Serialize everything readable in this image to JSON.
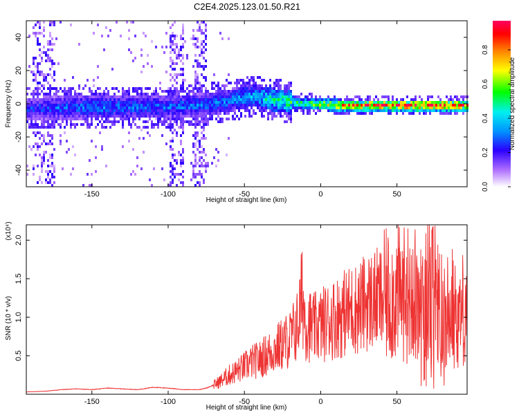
{
  "figure": {
    "title": "C2E4.2025.123.01.50.R21"
  },
  "chart_data": [
    {
      "type": "heatmap",
      "xlabel": "Height of straight line (km)",
      "ylabel": "Frequency (Hz)",
      "xlim": [
        -193,
        96
      ],
      "ylim": [
        -50,
        50
      ],
      "xticks": [
        -150,
        -100,
        -50,
        0,
        50
      ],
      "yticks": [
        -40,
        -20,
        0,
        20,
        40
      ],
      "grid": false,
      "colorbar": {
        "label": "Normalized spectral amplitude",
        "range": [
          0,
          0.97
        ],
        "ticks": [
          0.0,
          0.2,
          0.4,
          0.6,
          0.8
        ]
      },
      "ridge": [
        {
          "x": -190,
          "f": -3,
          "amp": 0.25
        },
        {
          "x": -150,
          "f": -2,
          "amp": 0.32
        },
        {
          "x": -110,
          "f": -2,
          "amp": 0.3
        },
        {
          "x": -80,
          "f": -1,
          "amp": 0.3
        },
        {
          "x": -60,
          "f": 2,
          "amp": 0.33
        },
        {
          "x": -45,
          "f": 5,
          "amp": 0.38
        },
        {
          "x": -30,
          "f": 2,
          "amp": 0.5
        },
        {
          "x": -10,
          "f": 0,
          "amp": 0.55
        },
        {
          "x": 10,
          "f": -1,
          "amp": 0.75
        },
        {
          "x": 40,
          "f": -1,
          "amp": 0.85
        },
        {
          "x": 70,
          "f": -1,
          "amp": 0.9
        },
        {
          "x": 95,
          "f": -1,
          "amp": 0.8
        }
      ]
    },
    {
      "type": "line",
      "xlabel": "Height of straight line (km)",
      "ylabel": "SNR (10 * v/v)",
      "scale_label": "(x10⁴)",
      "xlim": [
        -193,
        96
      ],
      "ylim": [
        0,
        2.2
      ],
      "xticks": [
        -150,
        -100,
        -50,
        0,
        50
      ],
      "yticks": [
        0.5,
        1.0,
        1.5,
        2.0
      ],
      "ytick_labels": [
        "0.5",
        "1.0",
        "1.5",
        "2.0"
      ],
      "grid": false,
      "series": [
        {
          "color": "#ee3333",
          "x": [
            -193,
            -180,
            -170,
            -160,
            -150,
            -140,
            -130,
            -120,
            -110,
            -100,
            -90,
            -80,
            -75,
            -70,
            -65,
            -60,
            -55,
            -50,
            -45,
            -40,
            -35,
            -30,
            -25,
            -20,
            -15,
            -12,
            -10,
            -5,
            0,
            5,
            10,
            15,
            20,
            25,
            30,
            35,
            40,
            45,
            50,
            55,
            60,
            65,
            70,
            75,
            80,
            85,
            90,
            96
          ],
          "y": [
            0.03,
            0.04,
            0.06,
            0.07,
            0.06,
            0.08,
            0.07,
            0.06,
            0.09,
            0.08,
            0.06,
            0.06,
            0.08,
            0.12,
            0.18,
            0.25,
            0.3,
            0.36,
            0.42,
            0.45,
            0.52,
            0.58,
            0.65,
            0.72,
            0.9,
            1.3,
            0.95,
            0.85,
            0.9,
            0.95,
            1.0,
            1.05,
            1.1,
            1.12,
            1.2,
            1.22,
            1.25,
            1.28,
            1.3,
            1.3,
            1.35,
            1.25,
            1.4,
            1.3,
            1.05,
            1.2,
            1.0,
            1.2
          ]
        }
      ]
    }
  ]
}
